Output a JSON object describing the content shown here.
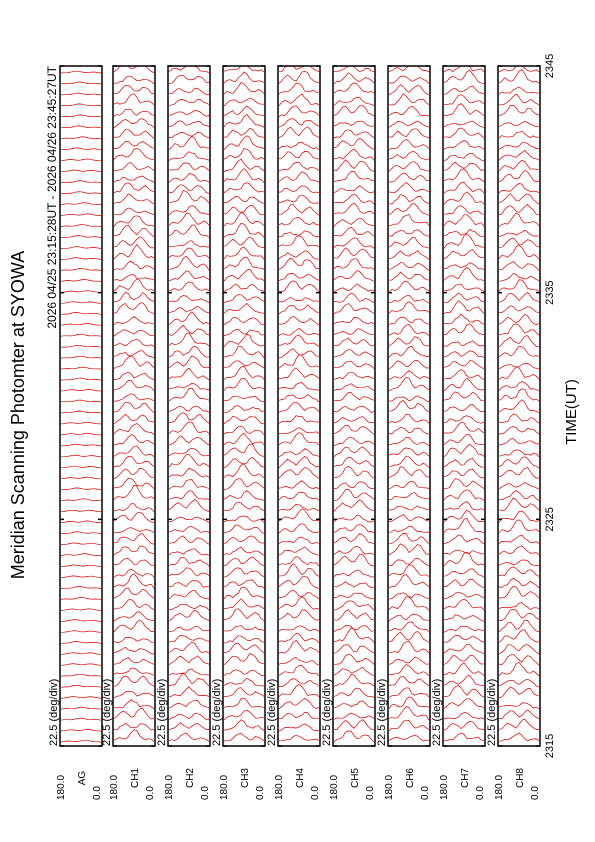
{
  "chart_data": {
    "type": "photometer",
    "title": "Meridian Scanning Photomter at SYOWA",
    "subtitle": "2026 04/25 23:15:28UT - 2026 04/26 23:45:27UT",
    "x_label": "TIME(UT)",
    "xlim": [
      2315,
      2345
    ],
    "xticks": [
      2315,
      2325,
      2335,
      2345
    ],
    "color": "#e00000",
    "panels": [
      {
        "name": "AG",
        "scale_label": "22.5 (deg/div)",
        "angle_ticks": [
          {
            "value": 180,
            "label": "180.0"
          },
          {
            "value": 0,
            "label": "0.0"
          }
        ]
      },
      {
        "name": "CH1",
        "scale_label": "22.5 (deg/div)",
        "angle_ticks": [
          {
            "value": 180,
            "label": "180.0"
          },
          {
            "value": 0,
            "label": "0.0"
          }
        ]
      },
      {
        "name": "CH2",
        "scale_label": "22.5 (deg/div)",
        "angle_ticks": [
          {
            "value": 180,
            "label": "180.0"
          },
          {
            "value": 0,
            "label": "0.0"
          }
        ]
      },
      {
        "name": "CH3",
        "scale_label": "22.5 (deg/div)",
        "angle_ticks": [
          {
            "value": 180,
            "label": "180.0"
          },
          {
            "value": 0,
            "label": "0.0"
          }
        ]
      },
      {
        "name": "CH4",
        "scale_label": "22.5 (deg/div)",
        "angle_ticks": [
          {
            "value": 180,
            "label": "180.0"
          },
          {
            "value": 0,
            "label": "0.0"
          }
        ]
      },
      {
        "name": "CH5",
        "scale_label": "22.5 (deg/div)",
        "angle_ticks": [
          {
            "value": 180,
            "label": "180.0"
          },
          {
            "value": 0,
            "label": "0.0"
          }
        ]
      },
      {
        "name": "CH6",
        "scale_label": "22.5 (deg/div)",
        "angle_ticks": [
          {
            "value": 180,
            "label": "180.0"
          },
          {
            "value": 0,
            "label": "0.0"
          }
        ]
      },
      {
        "name": "CH7",
        "scale_label": "22.5 (deg/div)",
        "angle_ticks": [
          {
            "value": 180,
            "label": "180.0"
          },
          {
            "value": 0,
            "label": "0.0"
          }
        ]
      },
      {
        "name": "CH8",
        "scale_label": "22.5 (deg/div)",
        "angle_ticks": [
          {
            "value": 180,
            "label": "180.0"
          },
          {
            "value": 0,
            "label": "0.0"
          }
        ]
      }
    ]
  }
}
